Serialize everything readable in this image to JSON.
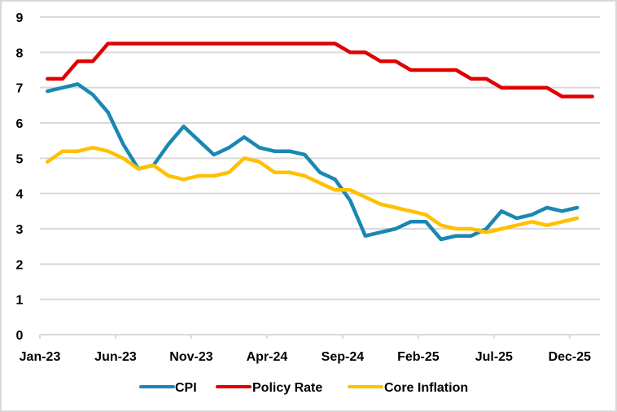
{
  "chart_data": {
    "type": "line",
    "title": "",
    "xlabel": "",
    "ylabel": "",
    "ylim": [
      0,
      9
    ],
    "yticks": [
      "0",
      "1",
      "2",
      "3",
      "4",
      "5",
      "6",
      "7",
      "8",
      "9"
    ],
    "grid": true,
    "legend_position": "bottom",
    "x": [
      "Jan-23",
      "Feb-23",
      "Mar-23",
      "Apr-23",
      "May-23",
      "Jun-23",
      "Jul-23",
      "Aug-23",
      "Sep-23",
      "Oct-23",
      "Nov-23",
      "Dec-23",
      "Jan-24",
      "Feb-24",
      "Mar-24",
      "Apr-24",
      "May-24",
      "Jun-24",
      "Jul-24",
      "Aug-24",
      "Sep-24",
      "Oct-24",
      "Nov-24",
      "Dec-24",
      "Jan-25",
      "Feb-25",
      "Mar-25",
      "Apr-25",
      "May-25",
      "Jun-25",
      "Jul-25",
      "Aug-25",
      "Sep-25",
      "Oct-25",
      "Nov-25",
      "Dec-25",
      "Jan-26"
    ],
    "xtick_labels": [
      "Jan-23",
      "Jun-23",
      "Nov-23",
      "Apr-24",
      "Sep-24",
      "Feb-25",
      "Jul-25",
      "Dec-25"
    ],
    "series": [
      {
        "name": "CPI",
        "color": "#1A87B3",
        "values": [
          6.9,
          7.0,
          7.1,
          6.8,
          6.3,
          5.4,
          4.7,
          4.8,
          5.4,
          5.9,
          5.5,
          5.1,
          5.3,
          5.6,
          5.3,
          5.2,
          5.2,
          5.1,
          4.6,
          4.4,
          3.8,
          2.8,
          2.9,
          3.0,
          3.2,
          3.2,
          2.7,
          2.8,
          2.8,
          3.0,
          3.5,
          3.3,
          3.4,
          3.6,
          3.5,
          3.6,
          null
        ]
      },
      {
        "name": "Policy Rate",
        "color": "#E00000",
        "values": [
          7.25,
          7.25,
          7.75,
          7.75,
          8.25,
          8.25,
          8.25,
          8.25,
          8.25,
          8.25,
          8.25,
          8.25,
          8.25,
          8.25,
          8.25,
          8.25,
          8.25,
          8.25,
          8.25,
          8.25,
          8.0,
          8.0,
          7.75,
          7.75,
          7.5,
          7.5,
          7.5,
          7.5,
          7.25,
          7.25,
          7.0,
          7.0,
          7.0,
          7.0,
          6.75,
          6.75,
          6.75
        ]
      },
      {
        "name": "Core Inflation",
        "color": "#FFC000",
        "values": [
          4.9,
          5.2,
          5.2,
          5.3,
          5.2,
          5.0,
          4.7,
          4.8,
          4.5,
          4.4,
          4.5,
          4.5,
          4.6,
          5.0,
          4.9,
          4.6,
          4.6,
          4.5,
          4.3,
          4.1,
          4.1,
          3.9,
          3.7,
          3.6,
          3.5,
          3.4,
          3.1,
          3.0,
          3.0,
          2.9,
          3.0,
          3.1,
          3.2,
          3.1,
          3.2,
          3.3,
          null
        ]
      }
    ],
    "colors": {
      "grid": "#d9d9d9",
      "border": "#d9d9d9",
      "text": "#000000"
    }
  }
}
